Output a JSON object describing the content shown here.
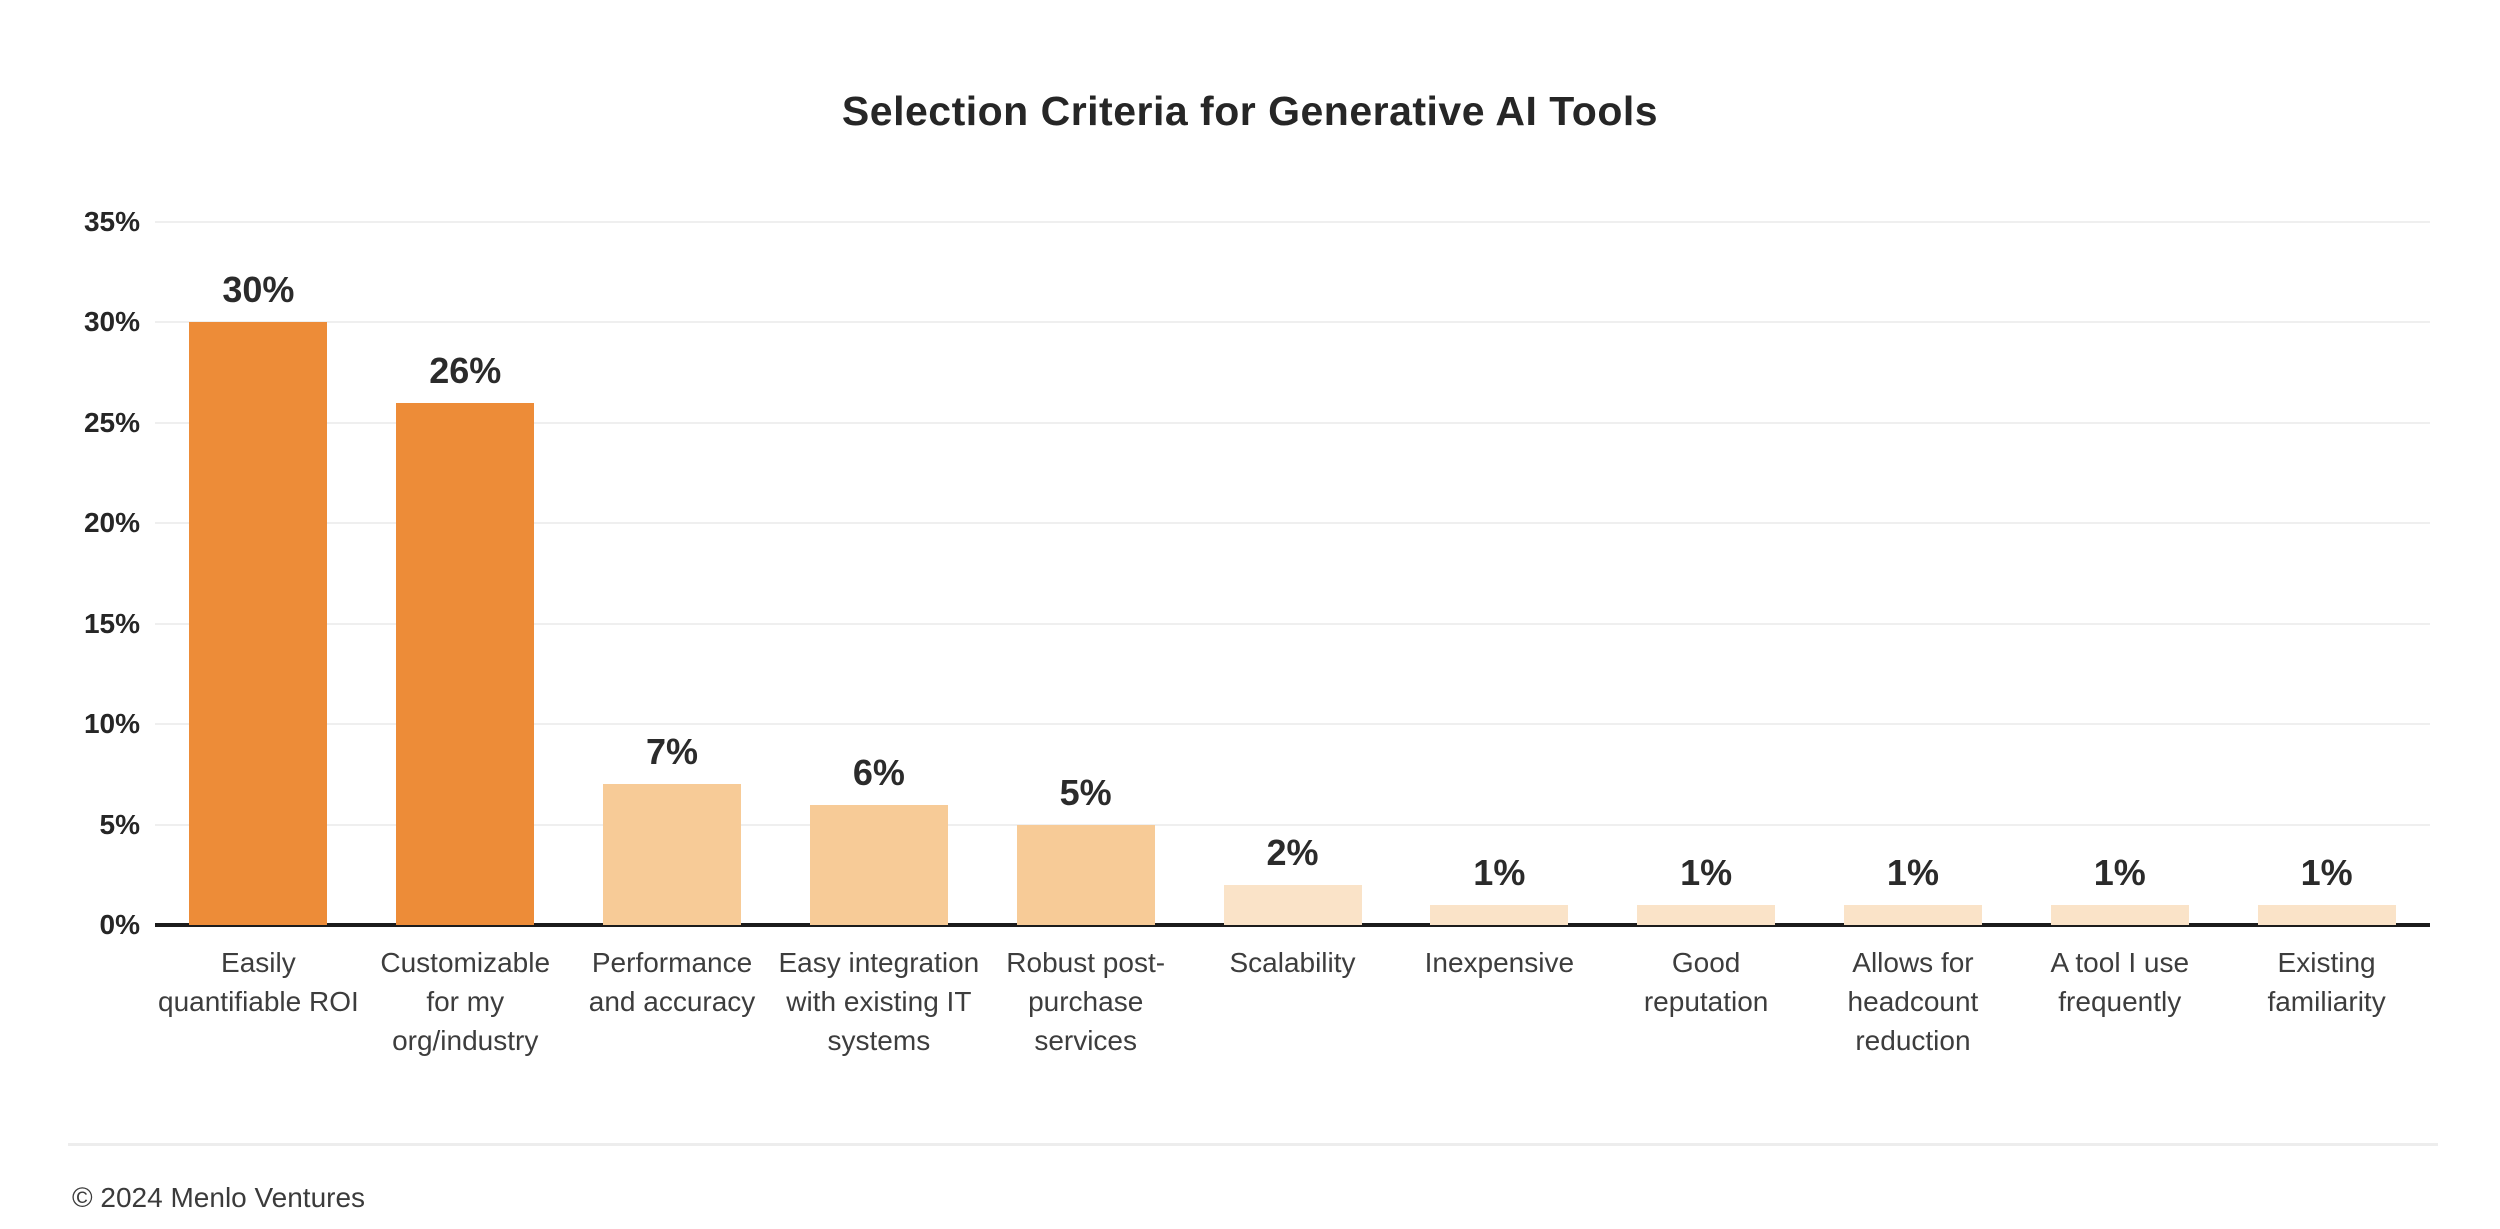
{
  "chart_data": {
    "type": "bar",
    "title": "Selection Criteria for Generative AI Tools",
    "categories": [
      "Easily\nquantifiable ROI",
      "Customizable\nfor my\norg/industry",
      "Performance\nand accuracy",
      "Easy integration\nwith existing IT\nsystems",
      "Robust post-\npurchase\nservices",
      "Scalability",
      "Inexpensive",
      "Good\nreputation",
      "Allows for\nheadcount\nreduction",
      "A tool I use\nfrequently",
      "Existing\nfamiliarity"
    ],
    "values": [
      30,
      26,
      7,
      6,
      5,
      2,
      1,
      1,
      1,
      1,
      1
    ],
    "value_labels": [
      "30%",
      "26%",
      "7%",
      "6%",
      "5%",
      "2%",
      "1%",
      "1%",
      "1%",
      "1%",
      "1%"
    ],
    "bar_colors": [
      "#ED8C38",
      "#ED8C38",
      "#F7CB97",
      "#F7CB97",
      "#F7CB97",
      "#FAE3C8",
      "#FAE3C8",
      "#FAE3C8",
      "#FAE3C8",
      "#FAE3C8",
      "#FAE3C8"
    ],
    "xlabel": "",
    "ylabel": "",
    "ylim": [
      0,
      35
    ],
    "ytick_step": 5,
    "yticks": [
      "35%",
      "30%",
      "25%",
      "20%",
      "15%",
      "10%",
      "5%",
      "0%"
    ],
    "grid": true,
    "legend": false,
    "gridline_color": "#efefef",
    "axis_line_color": "#1c1c1c"
  },
  "footer": {
    "copyright": "© 2024 Menlo Ventures"
  }
}
